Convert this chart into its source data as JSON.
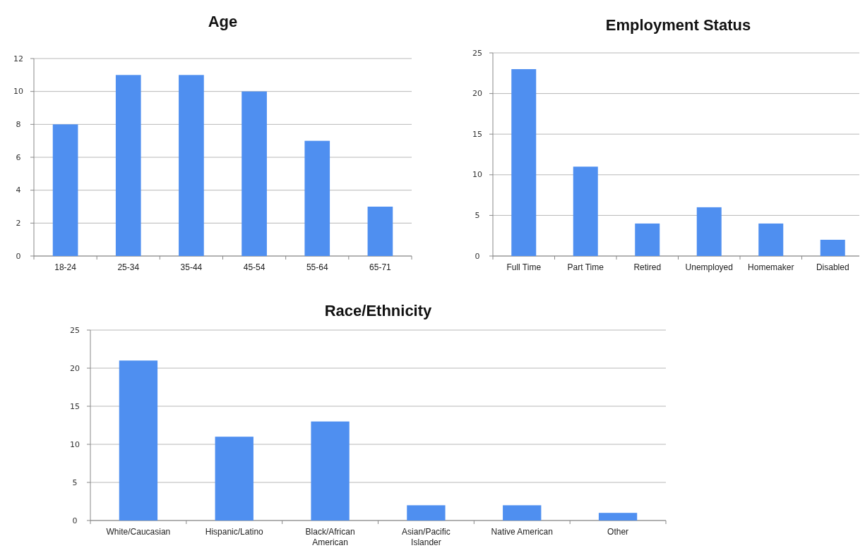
{
  "chart_data": [
    {
      "type": "bar",
      "title": "Age",
      "categories": [
        "18-24",
        "25-34",
        "35-44",
        "45-54",
        "55-64",
        "65-71"
      ],
      "values": [
        8,
        11,
        11,
        10,
        7,
        3
      ],
      "color": "#4f8ff0",
      "ylim": [
        0,
        12
      ],
      "yticks": [
        0,
        2,
        4,
        6,
        8,
        10,
        12
      ],
      "grid": "y"
    },
    {
      "type": "bar",
      "title": "Employment Status",
      "categories": [
        "Full Time",
        "Part Time",
        "Retired",
        "Unemployed",
        "Homemaker",
        "Disabled"
      ],
      "values": [
        23,
        11,
        4,
        6,
        4,
        2
      ],
      "color": "#4f8ff0",
      "ylim": [
        0,
        25
      ],
      "yticks": [
        0,
        5,
        10,
        15,
        20,
        25
      ],
      "grid": "y"
    },
    {
      "type": "bar",
      "title": "Race/Ethnicity",
      "categories": [
        "White/Caucasian",
        "Hispanic/Latino",
        "Black/African American",
        "Asian/Pacific Islander",
        "Native American",
        "Other"
      ],
      "values": [
        21,
        11,
        13,
        2,
        2,
        1
      ],
      "color": "#4f8ff0",
      "ylim": [
        0,
        25
      ],
      "yticks": [
        0,
        5,
        10,
        15,
        20,
        25
      ],
      "grid": "y"
    }
  ]
}
